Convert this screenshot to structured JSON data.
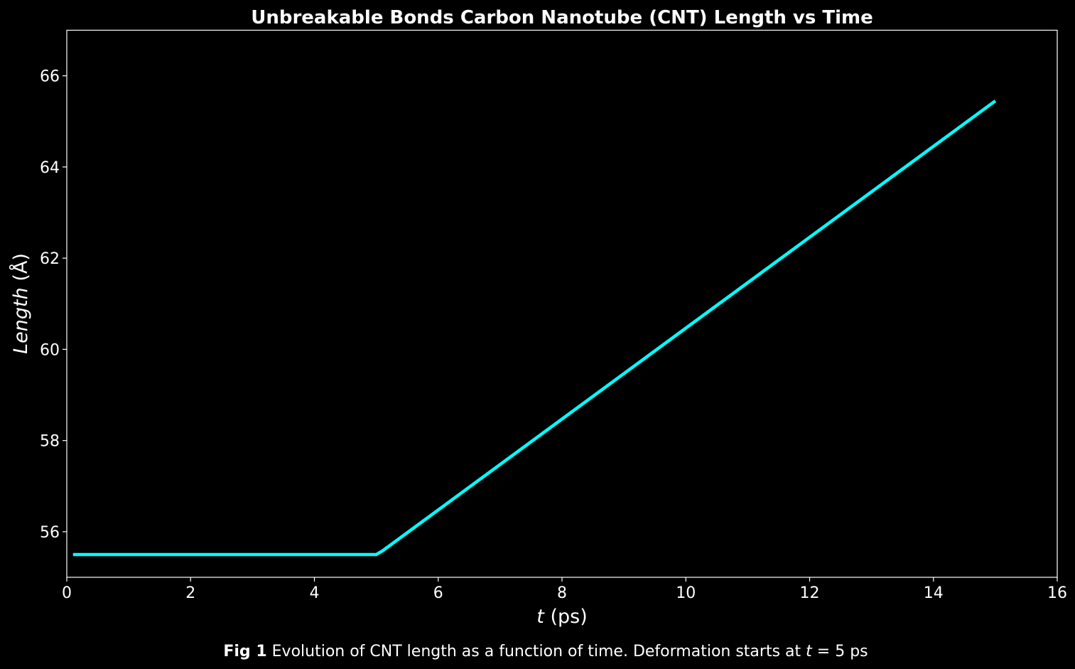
{
  "chart_data": {
    "type": "line",
    "title": "Unbreakable Bonds Carbon Nanotube (CNT) Length vs Time",
    "xlabel": {
      "var": "t",
      "unit": "(ps)"
    },
    "ylabel": {
      "var": "Length",
      "unit": "(Å)"
    },
    "xlim": [
      0,
      16
    ],
    "ylim": [
      55,
      67
    ],
    "xticks": [
      0,
      2,
      4,
      6,
      8,
      10,
      12,
      14,
      16
    ],
    "yticks": [
      56,
      58,
      60,
      62,
      64,
      66
    ],
    "grid": false,
    "legend": "none",
    "series": [
      {
        "color": "#00ffff",
        "x": [
          0.1,
          5.0,
          5.1,
          15.0
        ],
        "y": [
          55.5,
          55.5,
          55.58,
          65.45
        ]
      }
    ]
  },
  "caption": {
    "label": "Fig 1",
    "text_before": " Evolution of CNT length as a function of time. Deformation starts at ",
    "var": "t",
    "text_after": " = 5 ps"
  },
  "colors": {
    "background": "#000000",
    "axes": "#ffffff",
    "line": "#00ffff"
  }
}
